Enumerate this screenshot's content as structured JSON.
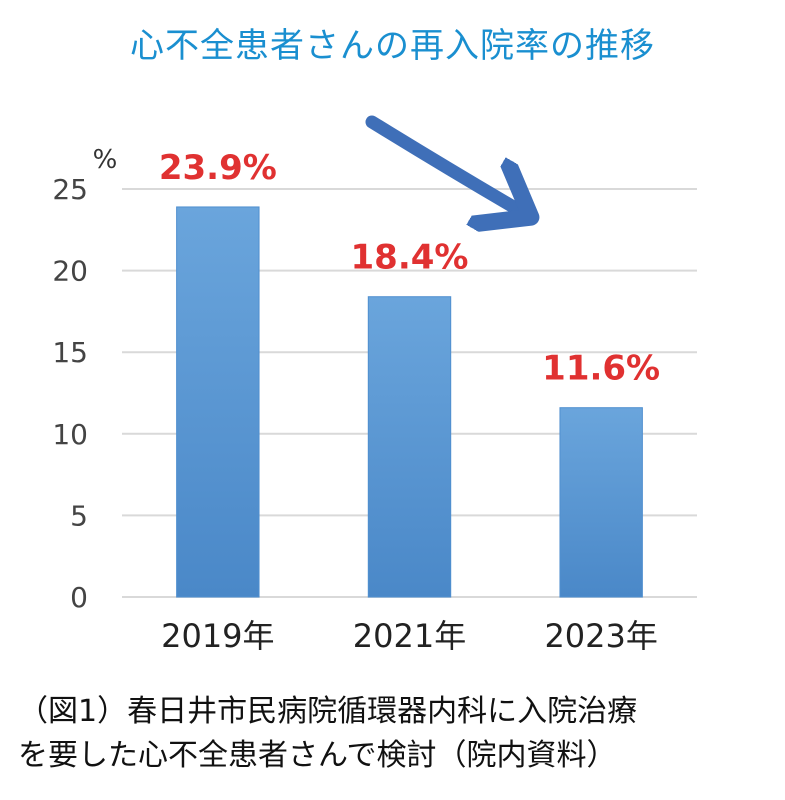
{
  "title": "心不全患者さんの再入院率の推移",
  "chart_data": {
    "type": "bar",
    "ylabel": "%",
    "categories": [
      "2019年",
      "2021年",
      "2023年"
    ],
    "values": [
      23.9,
      18.4,
      11.6
    ],
    "data_labels": [
      "23.9%",
      "18.4%",
      "11.6%"
    ],
    "ylim": [
      0,
      25
    ],
    "yticks": [
      0,
      5,
      10,
      15,
      20,
      25
    ],
    "grid": true,
    "trend_arrow": "down-right"
  },
  "colors": {
    "title": "#1a8fd0",
    "bar": "#5b9bd5",
    "data_label": "#e03131",
    "arrow": "#3f6fb8",
    "grid": "#d9d9d9"
  },
  "caption": {
    "line1": "（図1）春日井市民病院循環器内科に入院治療",
    "line2": "を要した心不全患者さんで検討（院内資料）"
  }
}
